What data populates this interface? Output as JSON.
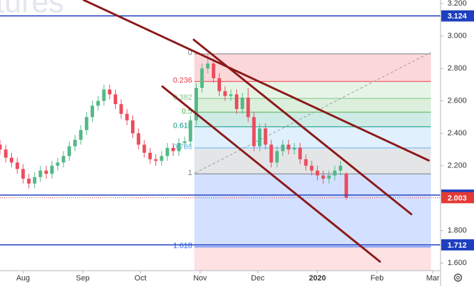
{
  "chart_data": {
    "type": "candlestick",
    "watermark": "tures",
    "xlim": [
      -12,
      217
    ],
    "xticks": [
      {
        "value": 0,
        "label": "Aug"
      },
      {
        "value": 31,
        "label": "Sep"
      },
      {
        "value": 61,
        "label": "Oct"
      },
      {
        "value": 92,
        "label": "Nov"
      },
      {
        "value": 122,
        "label": "Dec"
      },
      {
        "value": 153,
        "label": "2020"
      },
      {
        "value": 184,
        "label": "Feb"
      },
      {
        "value": 213,
        "label": "Mar"
      }
    ],
    "ylim": [
      1.553,
      3.222
    ],
    "yticks": [
      {
        "value": 1.6,
        "label": "1.600"
      },
      {
        "value": 1.8,
        "label": "1.800"
      },
      {
        "value": 2.0,
        "label": "2.000"
      },
      {
        "value": 2.2,
        "label": "2.200"
      },
      {
        "value": 2.4,
        "label": "2.400"
      },
      {
        "value": 2.6,
        "label": "2.600"
      },
      {
        "value": 2.8,
        "label": "2.800"
      },
      {
        "value": 3.0,
        "label": "3.000"
      },
      {
        "value": 3.2,
        "label": "3.200"
      }
    ],
    "grid": false,
    "up_color": "#53b987",
    "down_color": "#eb4d5c",
    "candles": {
      "x": [
        -12,
        -9,
        -6,
        -3,
        0,
        3,
        6,
        9,
        12,
        15,
        18,
        21,
        24,
        27,
        30,
        33,
        36,
        39,
        42,
        45,
        48,
        51,
        54,
        57,
        60,
        63,
        66,
        69,
        72,
        75,
        78,
        81,
        84,
        87,
        90,
        93,
        96,
        99,
        102,
        105,
        108,
        111,
        114,
        117,
        120,
        123,
        126,
        129,
        132,
        135,
        138,
        141,
        144,
        147,
        150,
        153,
        156,
        159,
        162,
        165,
        168
      ],
      "open": [
        2.33,
        2.3,
        2.25,
        2.22,
        2.18,
        2.12,
        2.09,
        2.13,
        2.17,
        2.15,
        2.2,
        2.22,
        2.26,
        2.32,
        2.36,
        2.42,
        2.5,
        2.57,
        2.6,
        2.67,
        2.64,
        2.58,
        2.52,
        2.48,
        2.4,
        2.33,
        2.28,
        2.24,
        2.23,
        2.26,
        2.31,
        2.29,
        2.34,
        2.35,
        2.48,
        2.68,
        2.8,
        2.83,
        2.74,
        2.66,
        2.63,
        2.64,
        2.55,
        2.62,
        2.5,
        2.32,
        2.43,
        2.33,
        2.22,
        2.29,
        2.33,
        2.3,
        2.31,
        2.24,
        2.2,
        2.17,
        2.14,
        2.12,
        2.14,
        2.17,
        2.15
      ],
      "high": [
        2.36,
        2.33,
        2.28,
        2.25,
        2.21,
        2.15,
        2.16,
        2.2,
        2.2,
        2.23,
        2.25,
        2.29,
        2.35,
        2.39,
        2.45,
        2.53,
        2.6,
        2.63,
        2.7,
        2.7,
        2.67,
        2.61,
        2.55,
        2.51,
        2.43,
        2.36,
        2.31,
        2.27,
        2.29,
        2.34,
        2.34,
        2.37,
        2.38,
        2.51,
        2.71,
        2.83,
        2.89,
        2.86,
        2.77,
        2.69,
        2.67,
        2.67,
        2.65,
        2.68,
        2.53,
        2.46,
        2.46,
        2.36,
        2.32,
        2.36,
        2.36,
        2.34,
        2.34,
        2.27,
        2.23,
        2.2,
        2.17,
        2.17,
        2.2,
        2.23,
        2.16
      ],
      "low": [
        2.27,
        2.22,
        2.19,
        2.15,
        2.09,
        2.06,
        2.06,
        2.1,
        2.12,
        2.12,
        2.17,
        2.19,
        2.23,
        2.29,
        2.33,
        2.39,
        2.47,
        2.54,
        2.57,
        2.61,
        2.55,
        2.49,
        2.45,
        2.37,
        2.3,
        2.25,
        2.21,
        2.2,
        2.2,
        2.23,
        2.26,
        2.26,
        2.31,
        2.32,
        2.45,
        2.65,
        2.77,
        2.71,
        2.63,
        2.6,
        2.6,
        2.52,
        2.52,
        2.47,
        2.29,
        2.29,
        2.3,
        2.19,
        2.19,
        2.26,
        2.27,
        2.27,
        2.21,
        2.17,
        2.14,
        2.11,
        2.09,
        2.09,
        2.11,
        2.14,
        1.99
      ],
      "close": [
        2.3,
        2.25,
        2.22,
        2.18,
        2.12,
        2.09,
        2.13,
        2.17,
        2.15,
        2.2,
        2.22,
        2.26,
        2.32,
        2.36,
        2.42,
        2.5,
        2.57,
        2.6,
        2.67,
        2.64,
        2.58,
        2.52,
        2.48,
        2.4,
        2.33,
        2.28,
        2.24,
        2.23,
        2.26,
        2.31,
        2.29,
        2.34,
        2.35,
        2.48,
        2.68,
        2.8,
        2.83,
        2.74,
        2.66,
        2.63,
        2.64,
        2.55,
        2.62,
        2.5,
        2.32,
        2.43,
        2.33,
        2.22,
        2.29,
        2.33,
        2.3,
        2.31,
        2.24,
        2.2,
        2.17,
        2.14,
        2.12,
        2.14,
        2.17,
        2.2,
        2.003
      ]
    },
    "fibonacci": {
      "x": [
        89,
        212
      ],
      "extension_color": "#f23645",
      "levels": [
        {
          "label": "0",
          "price": 2.89,
          "color": "#787b86"
        },
        {
          "label": "0.236",
          "price": 2.72,
          "color": "#f23645"
        },
        {
          "label": "0.382",
          "price": 2.615,
          "color": "#81c784"
        },
        {
          "label": "0.5",
          "price": 2.53,
          "color": "#4caf50"
        },
        {
          "label": "0.618",
          "price": 2.44,
          "color": "#089981"
        },
        {
          "label": "0.786",
          "price": 2.31,
          "color": "#64b5f6"
        },
        {
          "label": "1",
          "price": 2.15,
          "color": "#787b86"
        },
        {
          "label": "1.618",
          "price": 1.7,
          "color": "#2962ff"
        }
      ]
    },
    "price_lines": [
      {
        "value": 3.124,
        "color": "#1e3fbf",
        "style": "solid"
      },
      {
        "value": 2.019,
        "color": "#1e3fbf",
        "style": "solid"
      },
      {
        "value": 2.003,
        "color": "#e53935",
        "style": "dotted"
      },
      {
        "value": 1.712,
        "color": "#1e3fbf",
        "style": "solid"
      }
    ]
  }
}
